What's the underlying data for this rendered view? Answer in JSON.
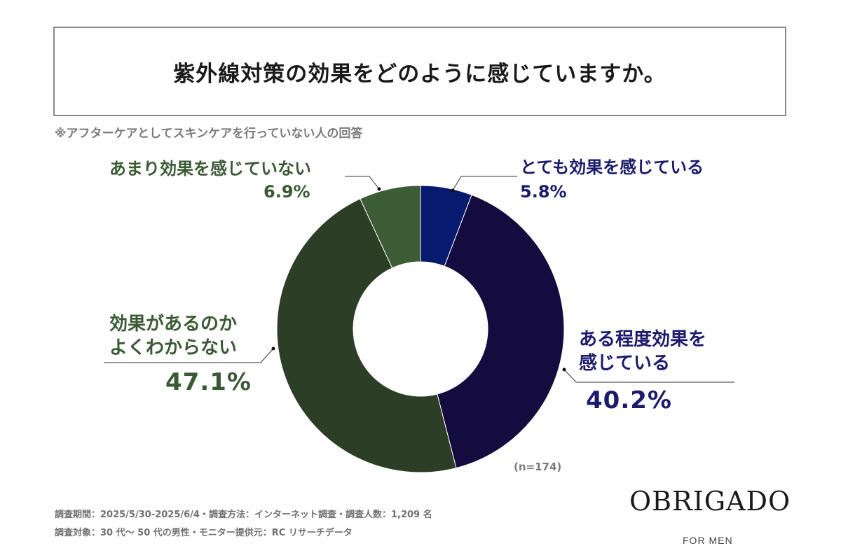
{
  "title": "紫外線対策の効果をどのように感じていますか。",
  "note": "※アフターケアとしてスキンケアを行っていない人の回答",
  "labels": {
    "very_effective": "とても効果を感じている",
    "very_effective_pct": "5.8%",
    "somewhat_effective_1": "ある程度効果を",
    "somewhat_effective_2": "感じている",
    "somewhat_effective_pct": "40.2%",
    "unsure_1": "効果があるのか",
    "unsure_2": "よくわからない",
    "unsure_pct": "47.1%",
    "not_effective": "あまり効果を感じていない",
    "not_effective_pct": "6.9%"
  },
  "sample_size": "(n=174)",
  "footer": {
    "line1": "調査期間：2025/5/30-2025/6/4・調査方法：インターネット調査・調査人数：1,209 名",
    "line2": "調査対象：30 代〜 50 代の男性・モニター提供元：RC リサーチデータ"
  },
  "brand": {
    "name": "OBRIGADO",
    "sub": "FOR MEN"
  },
  "chart_data": {
    "type": "pie",
    "donut": true,
    "start": "12 o'clock, clockwise",
    "categories": [
      "とても効果を感じている",
      "ある程度効果を感じている",
      "効果があるのかよくわからない",
      "あまり効果を感じていない"
    ],
    "values": [
      5.8,
      40.2,
      47.1,
      6.9
    ],
    "colors": [
      "#081a6e",
      "#140c3e",
      "#2c3f26",
      "#3c5c36"
    ]
  }
}
